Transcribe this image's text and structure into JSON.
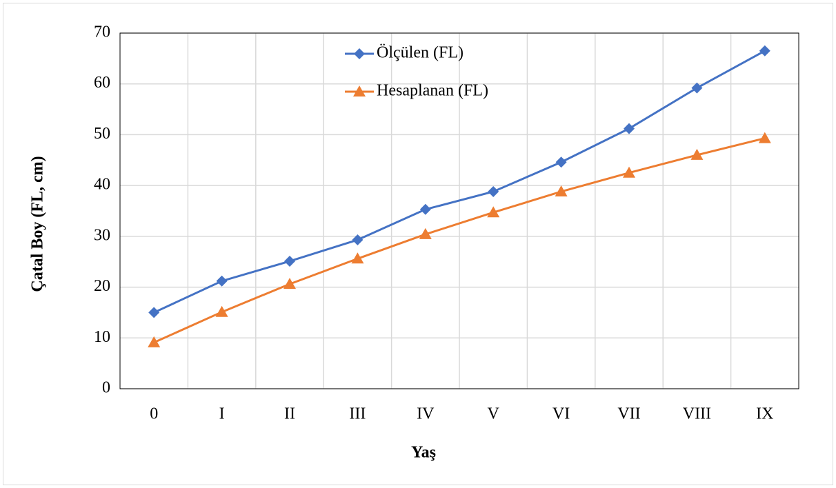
{
  "chart_data": {
    "type": "line",
    "x_label": "Yaş",
    "y_label": "Çatal Boy (FL, cm)",
    "categories": [
      "0",
      "I",
      "II",
      "III",
      "IV",
      "V",
      "VI",
      "VII",
      "VIII",
      "IX"
    ],
    "series": [
      {
        "name": "Ölçülen (FL)",
        "color": "#4472c4",
        "marker": "diamond",
        "values": [
          15.0,
          21.2,
          25.1,
          29.3,
          35.3,
          38.8,
          44.6,
          51.2,
          59.2,
          66.5
        ]
      },
      {
        "name": "Hesaplanan (FL)",
        "color": "#ed7d31",
        "marker": "triangle",
        "values": [
          9.1,
          15.1,
          20.6,
          25.6,
          30.4,
          34.7,
          38.8,
          42.5,
          46.0,
          49.3
        ]
      }
    ],
    "ylim": [
      0,
      70
    ],
    "yticks": [
      0,
      10,
      20,
      30,
      40,
      50,
      60,
      70
    ],
    "grid": true,
    "legend": "top"
  }
}
